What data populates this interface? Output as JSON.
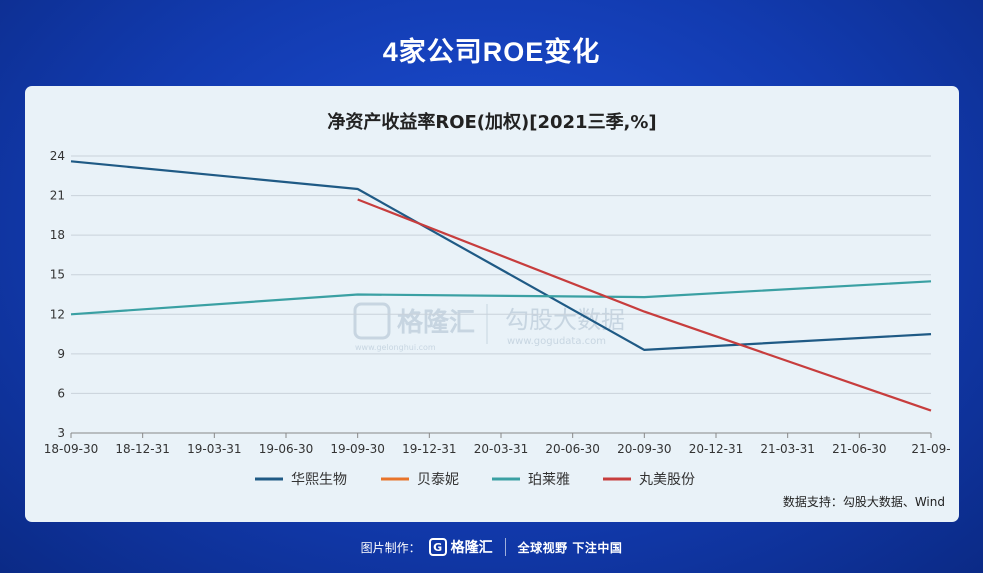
{
  "page_title": "4家公司ROE变化",
  "source_text": "数据支持：勾股大数据、Wind",
  "watermark": {
    "brand": "格隆汇",
    "brand_sub": "www.gelonghui.com",
    "data_brand": "勾股大数据",
    "data_sub": "www.gogudata.com"
  },
  "footer": {
    "label": "图片制作：",
    "brand": "格隆汇",
    "slogan": "全球视野 下注中国"
  },
  "chart_data": {
    "type": "line",
    "title": "净资产收益率ROE(加权)[2021三季,%]",
    "x": [
      "18-09-30",
      "18-12-31",
      "19-03-31",
      "19-06-30",
      "19-09-30",
      "19-12-31",
      "20-03-31",
      "20-06-30",
      "20-09-30",
      "20-12-31",
      "21-03-31",
      "21-06-30",
      "21-09-"
    ],
    "ylim": [
      3,
      24
    ],
    "yticks": [
      3,
      6,
      9,
      12,
      15,
      18,
      21,
      24
    ],
    "grid": true,
    "legend_position": "bottom",
    "series": [
      {
        "name": "华熙生物",
        "color": "#1f5a85",
        "points": [
          [
            0,
            23.6
          ],
          [
            4,
            21.5
          ],
          [
            8,
            9.3
          ],
          [
            12,
            10.5
          ]
        ]
      },
      {
        "name": "贝泰妮",
        "color": "#e8742a",
        "points": []
      },
      {
        "name": "珀莱雅",
        "color": "#3aa0a3",
        "points": [
          [
            0,
            12.0
          ],
          [
            4,
            13.5
          ],
          [
            8,
            13.3
          ],
          [
            12,
            14.5
          ]
        ]
      },
      {
        "name": "丸美股份",
        "color": "#c73d3d",
        "points": [
          [
            4,
            20.7
          ],
          [
            8,
            12.2
          ],
          [
            12,
            4.7
          ]
        ]
      }
    ]
  }
}
